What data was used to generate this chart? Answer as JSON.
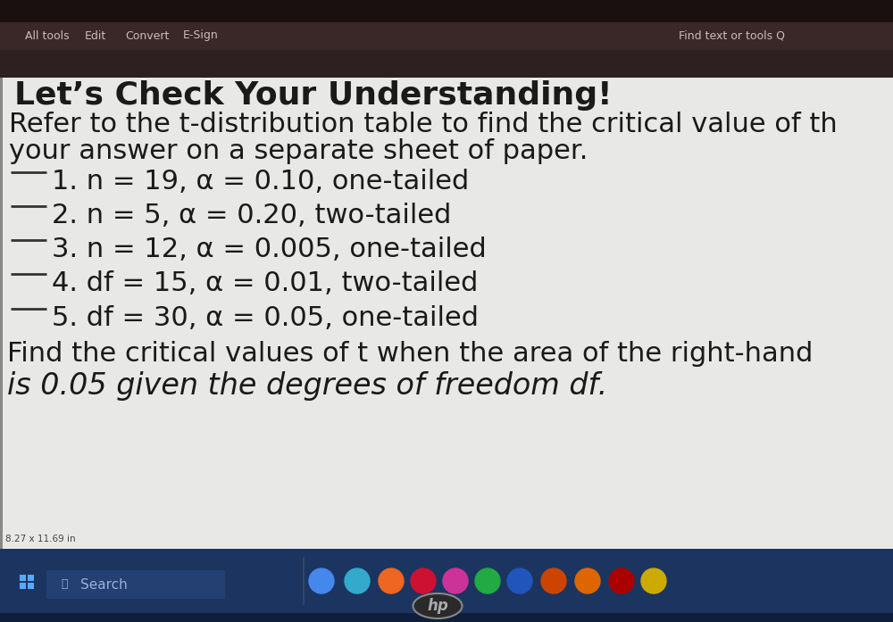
{
  "outer_bg": "#2a2a2a",
  "toolbar_bg": "#3a2a2a",
  "toolbar_bg2": "#2e2020",
  "content_bg": "#e8e8e6",
  "taskbar_bg": "#1c3560",
  "taskbar_bg2": "#162a50",
  "left_bar_color": "#555555",
  "title": "Let’s Check Your Understanding!",
  "subtitle1": "Refer to the t-distribution table to find the critical value of th",
  "subtitle2": "your answer on a separate sheet of paper.",
  "items": [
    "1. n = 19, α = 0.10, one-tailed",
    "2. n = 5, α = 0.20, two-tailed",
    "3. n = 12, α = 0.005, one-tailed",
    "4. df = 15, α = 0.01, two-tailed",
    "5. df = 30, α = 0.05, one-tailed"
  ],
  "footer1": "Find the critical values of t when the area of the right-hand",
  "footer2": "is 0.05 given the degrees of freedom df.",
  "size_label": "8.27 x 11.69 in",
  "toolbar_left": [
    "All tools",
    "Edit",
    "Convert",
    "E-Sign"
  ],
  "toolbar_right": "Find text or tools Q",
  "search_text": "Search",
  "hp_text": "hp",
  "title_fontsize": 26,
  "body_fontsize": 22,
  "item_fontsize": 22,
  "footer_fontsize": 22,
  "toolbar_fontsize": 9,
  "text_color": "#1a1a1a"
}
